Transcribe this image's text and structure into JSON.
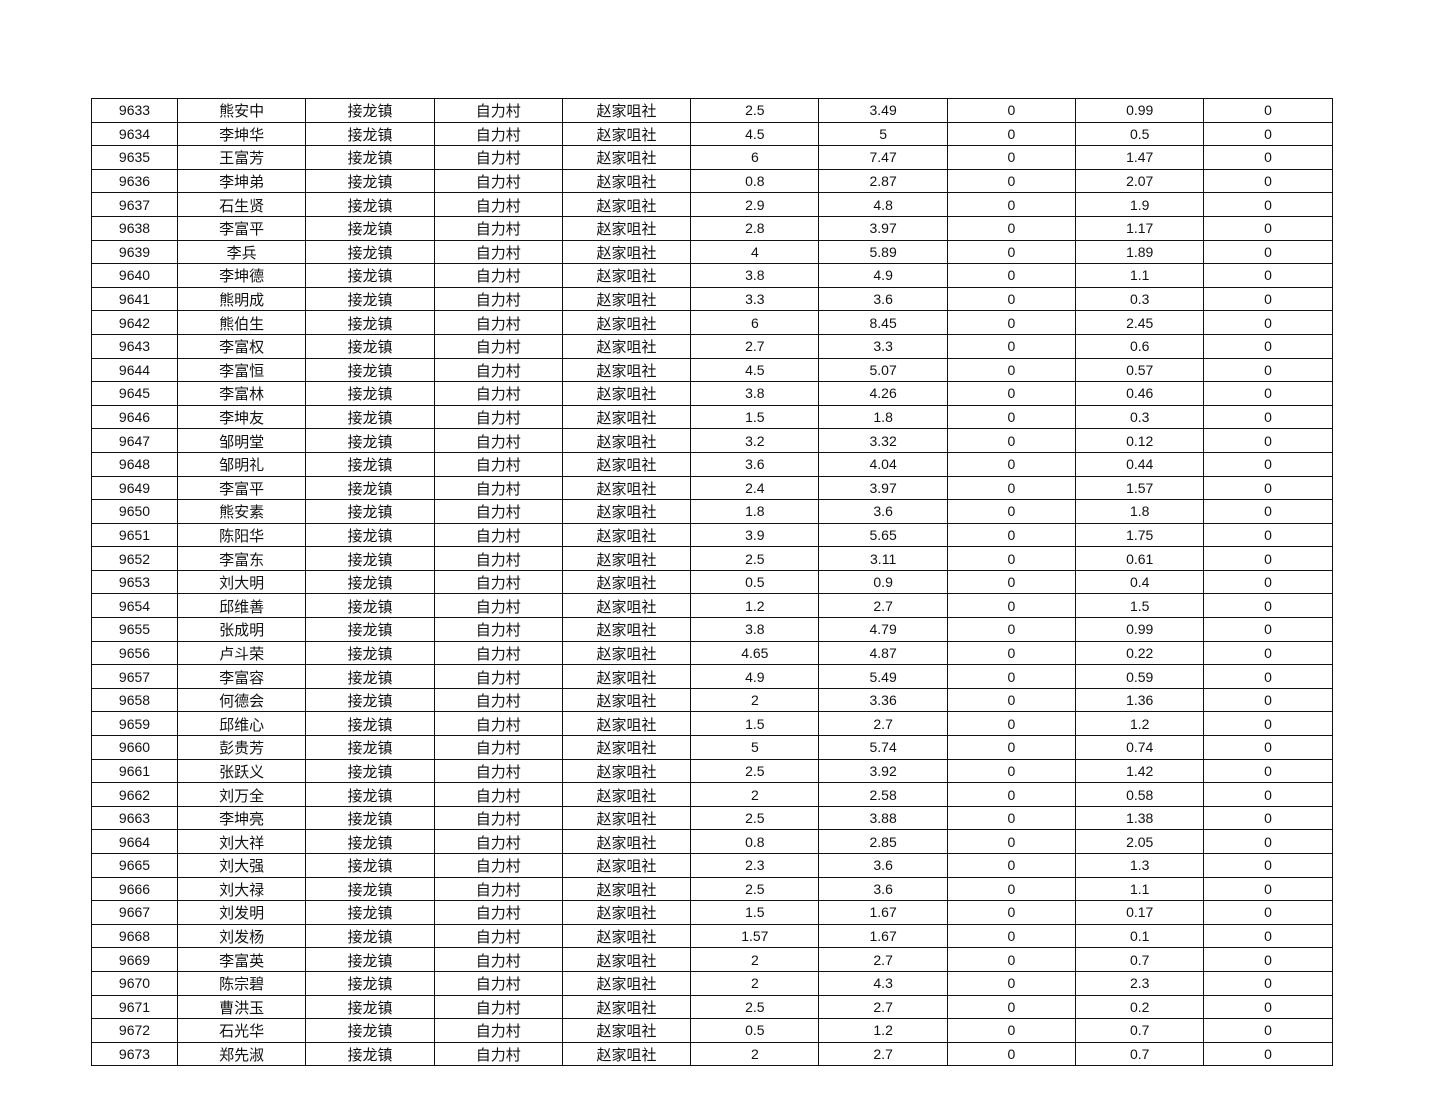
{
  "table": {
    "rows": [
      [
        "9633",
        "熊安中",
        "接龙镇",
        "自力村",
        "赵家咀社",
        "2.5",
        "3.49",
        "0",
        "0.99",
        "0"
      ],
      [
        "9634",
        "李坤华",
        "接龙镇",
        "自力村",
        "赵家咀社",
        "4.5",
        "5",
        "0",
        "0.5",
        "0"
      ],
      [
        "9635",
        "王富芳",
        "接龙镇",
        "自力村",
        "赵家咀社",
        "6",
        "7.47",
        "0",
        "1.47",
        "0"
      ],
      [
        "9636",
        "李坤弟",
        "接龙镇",
        "自力村",
        "赵家咀社",
        "0.8",
        "2.87",
        "0",
        "2.07",
        "0"
      ],
      [
        "9637",
        "石生贤",
        "接龙镇",
        "自力村",
        "赵家咀社",
        "2.9",
        "4.8",
        "0",
        "1.9",
        "0"
      ],
      [
        "9638",
        "李富平",
        "接龙镇",
        "自力村",
        "赵家咀社",
        "2.8",
        "3.97",
        "0",
        "1.17",
        "0"
      ],
      [
        "9639",
        "李兵",
        "接龙镇",
        "自力村",
        "赵家咀社",
        "4",
        "5.89",
        "0",
        "1.89",
        "0"
      ],
      [
        "9640",
        "李坤德",
        "接龙镇",
        "自力村",
        "赵家咀社",
        "3.8",
        "4.9",
        "0",
        "1.1",
        "0"
      ],
      [
        "9641",
        "熊明成",
        "接龙镇",
        "自力村",
        "赵家咀社",
        "3.3",
        "3.6",
        "0",
        "0.3",
        "0"
      ],
      [
        "9642",
        "熊伯生",
        "接龙镇",
        "自力村",
        "赵家咀社",
        "6",
        "8.45",
        "0",
        "2.45",
        "0"
      ],
      [
        "9643",
        "李富权",
        "接龙镇",
        "自力村",
        "赵家咀社",
        "2.7",
        "3.3",
        "0",
        "0.6",
        "0"
      ],
      [
        "9644",
        "李富恒",
        "接龙镇",
        "自力村",
        "赵家咀社",
        "4.5",
        "5.07",
        "0",
        "0.57",
        "0"
      ],
      [
        "9645",
        "李富林",
        "接龙镇",
        "自力村",
        "赵家咀社",
        "3.8",
        "4.26",
        "0",
        "0.46",
        "0"
      ],
      [
        "9646",
        "李坤友",
        "接龙镇",
        "自力村",
        "赵家咀社",
        "1.5",
        "1.8",
        "0",
        "0.3",
        "0"
      ],
      [
        "9647",
        "邹明堂",
        "接龙镇",
        "自力村",
        "赵家咀社",
        "3.2",
        "3.32",
        "0",
        "0.12",
        "0"
      ],
      [
        "9648",
        "邹明礼",
        "接龙镇",
        "自力村",
        "赵家咀社",
        "3.6",
        "4.04",
        "0",
        "0.44",
        "0"
      ],
      [
        "9649",
        "李富平",
        "接龙镇",
        "自力村",
        "赵家咀社",
        "2.4",
        "3.97",
        "0",
        "1.57",
        "0"
      ],
      [
        "9650",
        "熊安素",
        "接龙镇",
        "自力村",
        "赵家咀社",
        "1.8",
        "3.6",
        "0",
        "1.8",
        "0"
      ],
      [
        "9651",
        "陈阳华",
        "接龙镇",
        "自力村",
        "赵家咀社",
        "3.9",
        "5.65",
        "0",
        "1.75",
        "0"
      ],
      [
        "9652",
        "李富东",
        "接龙镇",
        "自力村",
        "赵家咀社",
        "2.5",
        "3.11",
        "0",
        "0.61",
        "0"
      ],
      [
        "9653",
        "刘大明",
        "接龙镇",
        "自力村",
        "赵家咀社",
        "0.5",
        "0.9",
        "0",
        "0.4",
        "0"
      ],
      [
        "9654",
        "邱维善",
        "接龙镇",
        "自力村",
        "赵家咀社",
        "1.2",
        "2.7",
        "0",
        "1.5",
        "0"
      ],
      [
        "9655",
        "张成明",
        "接龙镇",
        "自力村",
        "赵家咀社",
        "3.8",
        "4.79",
        "0",
        "0.99",
        "0"
      ],
      [
        "9656",
        "卢斗荣",
        "接龙镇",
        "自力村",
        "赵家咀社",
        "4.65",
        "4.87",
        "0",
        "0.22",
        "0"
      ],
      [
        "9657",
        "李富容",
        "接龙镇",
        "自力村",
        "赵家咀社",
        "4.9",
        "5.49",
        "0",
        "0.59",
        "0"
      ],
      [
        "9658",
        "何德会",
        "接龙镇",
        "自力村",
        "赵家咀社",
        "2",
        "3.36",
        "0",
        "1.36",
        "0"
      ],
      [
        "9659",
        "邱维心",
        "接龙镇",
        "自力村",
        "赵家咀社",
        "1.5",
        "2.7",
        "0",
        "1.2",
        "0"
      ],
      [
        "9660",
        "彭贵芳",
        "接龙镇",
        "自力村",
        "赵家咀社",
        "5",
        "5.74",
        "0",
        "0.74",
        "0"
      ],
      [
        "9661",
        "张跃义",
        "接龙镇",
        "自力村",
        "赵家咀社",
        "2.5",
        "3.92",
        "0",
        "1.42",
        "0"
      ],
      [
        "9662",
        "刘万全",
        "接龙镇",
        "自力村",
        "赵家咀社",
        "2",
        "2.58",
        "0",
        "0.58",
        "0"
      ],
      [
        "9663",
        "李坤亮",
        "接龙镇",
        "自力村",
        "赵家咀社",
        "2.5",
        "3.88",
        "0",
        "1.38",
        "0"
      ],
      [
        "9664",
        "刘大祥",
        "接龙镇",
        "自力村",
        "赵家咀社",
        "0.8",
        "2.85",
        "0",
        "2.05",
        "0"
      ],
      [
        "9665",
        "刘大强",
        "接龙镇",
        "自力村",
        "赵家咀社",
        "2.3",
        "3.6",
        "0",
        "1.3",
        "0"
      ],
      [
        "9666",
        "刘大禄",
        "接龙镇",
        "自力村",
        "赵家咀社",
        "2.5",
        "3.6",
        "0",
        "1.1",
        "0"
      ],
      [
        "9667",
        "刘发明",
        "接龙镇",
        "自力村",
        "赵家咀社",
        "1.5",
        "1.67",
        "0",
        "0.17",
        "0"
      ],
      [
        "9668",
        "刘发杨",
        "接龙镇",
        "自力村",
        "赵家咀社",
        "1.57",
        "1.67",
        "0",
        "0.1",
        "0"
      ],
      [
        "9669",
        "李富英",
        "接龙镇",
        "自力村",
        "赵家咀社",
        "2",
        "2.7",
        "0",
        "0.7",
        "0"
      ],
      [
        "9670",
        "陈宗碧",
        "接龙镇",
        "自力村",
        "赵家咀社",
        "2",
        "4.3",
        "0",
        "2.3",
        "0"
      ],
      [
        "9671",
        "曹洪玉",
        "接龙镇",
        "自力村",
        "赵家咀社",
        "2.5",
        "2.7",
        "0",
        "0.2",
        "0"
      ],
      [
        "9672",
        "石光华",
        "接龙镇",
        "自力村",
        "赵家咀社",
        "0.5",
        "1.2",
        "0",
        "0.7",
        "0"
      ],
      [
        "9673",
        "郑先淑",
        "接龙镇",
        "自力村",
        "赵家咀社",
        "2",
        "2.7",
        "0",
        "0.7",
        "0"
      ]
    ]
  }
}
